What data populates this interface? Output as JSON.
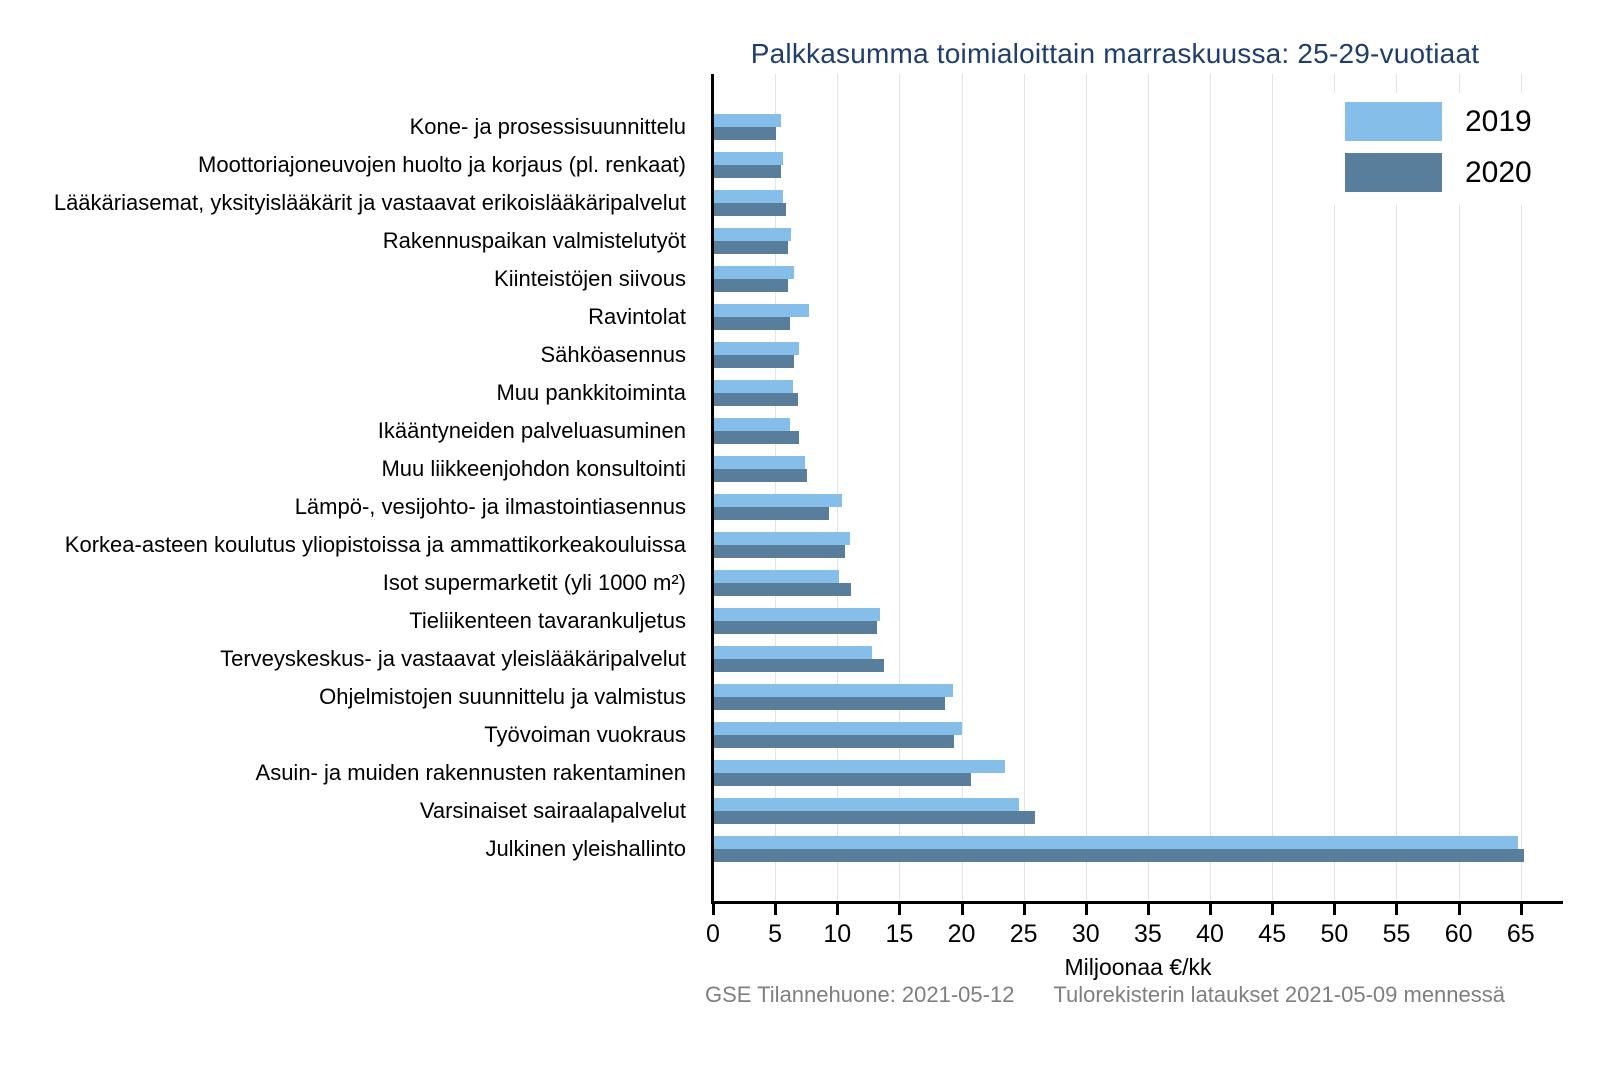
{
  "title": "Palkkasumma toimialoittain marraskuussa: 25-29-vuotiaat",
  "title_color": "#1f3d6d",
  "xlabel": "Miljoonaa €/kk",
  "footer": {
    "left": "GSE Tilannehuone: 2021-05-12",
    "right": "Tulorekisterin lataukset 2021-05-09 mennessä"
  },
  "legend": [
    {
      "label": "2019",
      "color": "#85bfe9"
    },
    {
      "label": "2020",
      "color": "#587e9c"
    }
  ],
  "colors": {
    "series_2019": "#85bfe9",
    "series_2020": "#587e9c",
    "gridline": "#e3e3e3",
    "axis": "#000000",
    "footer_text": "#7f7f7f"
  },
  "chart_data": {
    "type": "bar",
    "orientation": "horizontal",
    "title": "Palkkasumma toimialoittain marraskuussa: 25-29-vuotiaat",
    "xlabel": "Miljoonaa €/kk",
    "ylabel": "",
    "xlim": [
      0,
      68.4
    ],
    "xticks": [
      0,
      5,
      10,
      15,
      20,
      25,
      30,
      35,
      40,
      45,
      50,
      55,
      60,
      65
    ],
    "grid": true,
    "legend_position": "top-right",
    "categories": [
      "Kone- ja prosessisuunnittelu",
      "Moottoriajoneuvojen huolto ja korjaus (pl. renkaat)",
      "Lääkäriasemat, yksityislääkärit ja vastaavat erikoislääkäripalvelut",
      "Rakennuspaikan valmistelutyöt",
      "Kiinteistöjen siivous",
      "Ravintolat",
      "Sähköasennus",
      "Muu pankkitoiminta",
      "Ikääntyneiden palveluasuminen",
      "Muu liikkeenjohdon konsultointi",
      "Lämpö-, vesijohto- ja ilmastointiasennus",
      "Korkea-asteen koulutus yliopistoissa ja ammattikorkeakouluissa",
      "Isot supermarketit (yli 1000 m²)",
      "Tieliikenteen tavarankuljetus",
      "Terveyskeskus- ja vastaavat yleislääkäripalvelut",
      "Ohjelmistojen suunnittelu ja valmistus",
      "Työvoiman vuokraus",
      "Asuin- ja muiden rakennusten rakentaminen",
      "Varsinaiset sairaalapalvelut",
      "Julkinen yleishallinto"
    ],
    "series": [
      {
        "name": "2019",
        "color": "#85bfe9",
        "values": [
          5.5,
          5.6,
          5.6,
          6.3,
          6.5,
          7.7,
          6.9,
          6.4,
          6.2,
          7.4,
          10.4,
          11.0,
          10.1,
          13.4,
          12.8,
          19.3,
          20.0,
          23.5,
          24.6,
          64.8
        ]
      },
      {
        "name": "2020",
        "color": "#587e9c",
        "values": [
          5.1,
          5.5,
          5.9,
          6.0,
          6.0,
          6.2,
          6.5,
          6.8,
          6.9,
          7.6,
          9.3,
          10.6,
          11.1,
          13.2,
          13.8,
          18.7,
          19.4,
          20.8,
          25.9,
          65.3
        ]
      }
    ]
  }
}
